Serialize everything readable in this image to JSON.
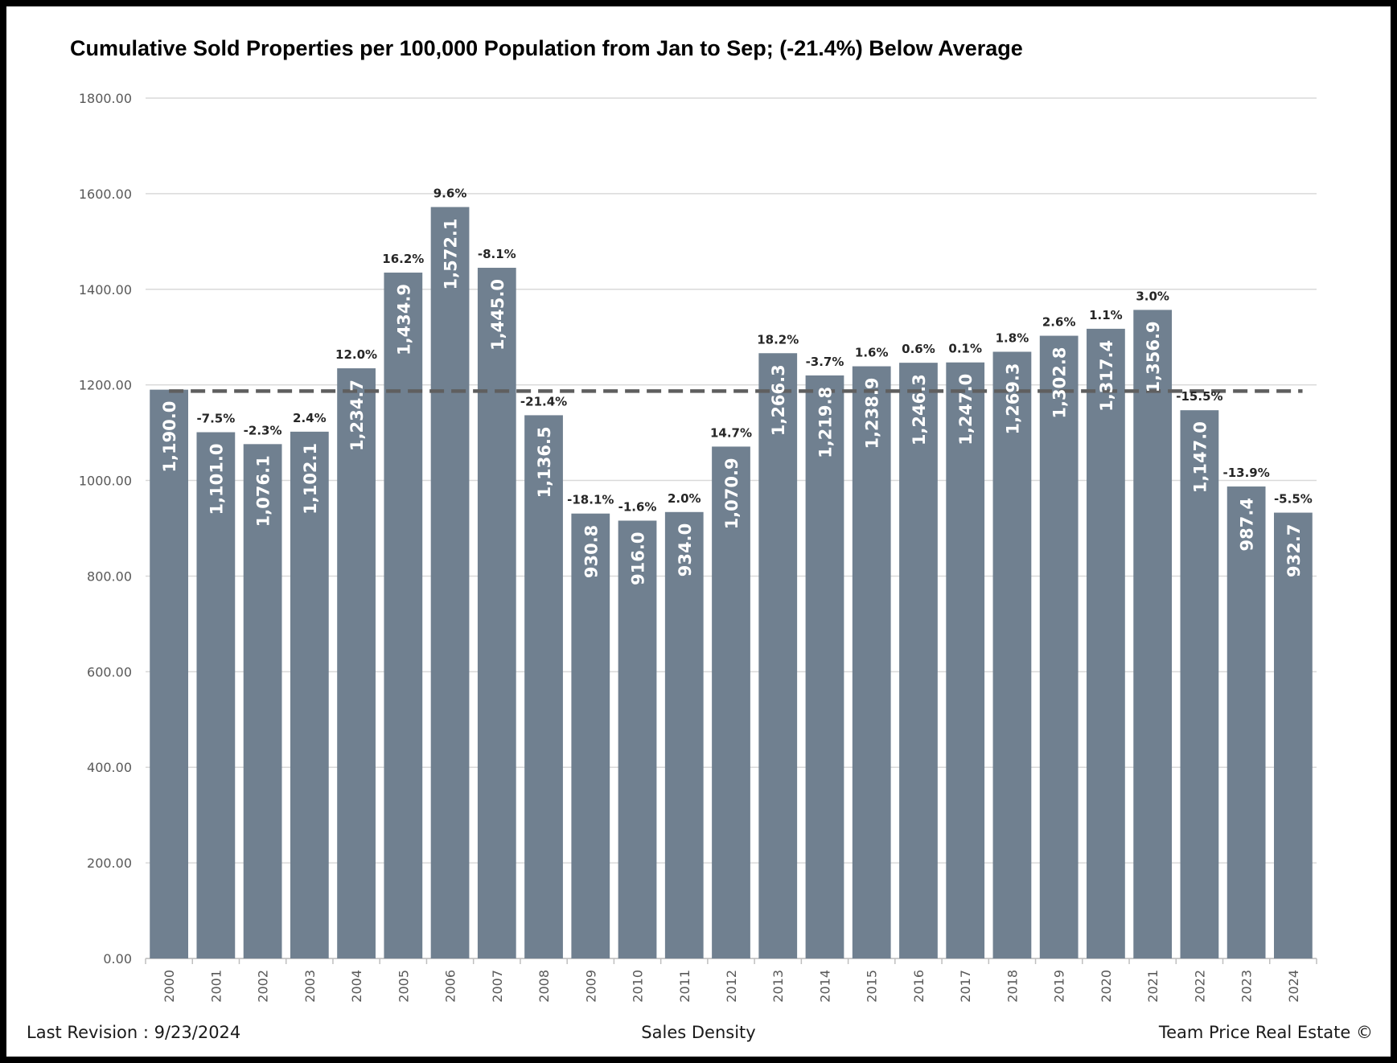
{
  "footer": {
    "revision": "Last Revision : 9/23/2024",
    "center": "Sales Density",
    "credit": "Team Price Real Estate ©"
  },
  "chart_data": {
    "type": "bar",
    "title": "Cumulative Sold Properties per 100,000 Population from Jan to Sep; (-21.4%) Below Average",
    "xlabel": "",
    "ylabel": "",
    "ylim": [
      0,
      1800
    ],
    "yticks": [
      0,
      200,
      400,
      600,
      800,
      1000,
      1200,
      1400,
      1600,
      1800
    ],
    "ytick_labels": [
      "0.00",
      "200.00",
      "400.00",
      "600.00",
      "800.00",
      "1000.00",
      "1200.00",
      "1400.00",
      "1600.00",
      "1800.00"
    ],
    "grid": true,
    "categories": [
      "2000",
      "2001",
      "2002",
      "2003",
      "2004",
      "2005",
      "2006",
      "2007",
      "2008",
      "2009",
      "2010",
      "2011",
      "2012",
      "2013",
      "2014",
      "2015",
      "2016",
      "2017",
      "2018",
      "2019",
      "2020",
      "2021",
      "2022",
      "2023",
      "2024"
    ],
    "values": [
      1190.0,
      1101.0,
      1076.1,
      1102.1,
      1234.7,
      1434.9,
      1572.1,
      1445.0,
      1136.5,
      930.8,
      916.0,
      934.0,
      1070.9,
      1266.3,
      1219.8,
      1238.9,
      1246.3,
      1247.0,
      1269.3,
      1302.8,
      1317.4,
      1356.9,
      1147.0,
      987.4,
      932.7
    ],
    "value_labels": [
      "1,190.0",
      "1,101.0",
      "1,076.1",
      "1,102.1",
      "1,234.7",
      "1,434.9",
      "1,572.1",
      "1,445.0",
      "1,136.5",
      "930.8",
      "916.0",
      "934.0",
      "1,070.9",
      "1,266.3",
      "1,219.8",
      "1,238.9",
      "1,246.3",
      "1,247.0",
      "1,269.3",
      "1,302.8",
      "1,317.4",
      "1,356.9",
      "1,147.0",
      "987.4",
      "932.7"
    ],
    "change_labels": [
      "",
      "-7.5%",
      "-2.3%",
      "2.4%",
      "12.0%",
      "16.2%",
      "9.6%",
      "-8.1%",
      "-21.4%",
      "-18.1%",
      "-1.6%",
      "2.0%",
      "14.7%",
      "18.2%",
      "-3.7%",
      "1.6%",
      "0.6%",
      "0.1%",
      "1.8%",
      "2.6%",
      "1.1%",
      "3.0%",
      "-15.5%",
      "-13.9%",
      "-5.5%"
    ],
    "average_line": 1187,
    "colors": {
      "bar": "#708090",
      "average": "#5f5f5f",
      "grid": "#d9d9d9",
      "bar_label": "#ffffff",
      "change_label": "#262626"
    }
  }
}
